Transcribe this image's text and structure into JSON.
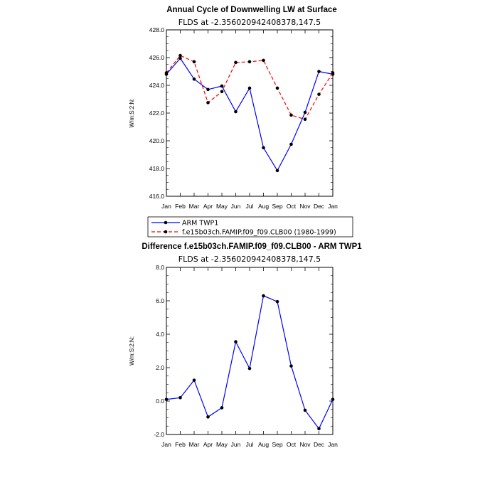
{
  "chart_data": [
    {
      "type": "line",
      "title": "Annual Cycle of Downwelling LW at Surface",
      "subtitle": "FLDS at -2.356020942408378,147.5",
      "ylabel": "W/m:S:2:N:",
      "ylim": [
        416.0,
        428.0
      ],
      "yticks": [
        "416.0",
        "418.0",
        "420.0",
        "422.0",
        "424.0",
        "426.0",
        "428.0"
      ],
      "categories": [
        "Jan",
        "Feb",
        "Mar",
        "Apr",
        "May",
        "Jun",
        "Jul",
        "Aug",
        "Sep",
        "Oct",
        "Nov",
        "Dec",
        "Jan"
      ],
      "series": [
        {
          "name": "ARM TWP1",
          "color": "#0000ff",
          "dash": "solid",
          "values": [
            424.8,
            425.95,
            424.45,
            423.7,
            423.95,
            422.1,
            423.8,
            419.5,
            417.85,
            419.75,
            422.05,
            425.0,
            424.8
          ]
        },
        {
          "name": "f.e15b03ch.FAMIP.f09_f09.CLB00 (1980-1999)",
          "color": "#ff0000",
          "dash": "dashed",
          "values": [
            424.9,
            426.15,
            425.7,
            422.75,
            423.55,
            425.65,
            425.7,
            425.8,
            423.8,
            421.85,
            421.55,
            423.35,
            424.9
          ]
        }
      ],
      "legend": "below"
    },
    {
      "type": "line",
      "title": "Difference f.e15b03ch.FAMIP.f09_f09.CLB00 - ARM TWP1",
      "subtitle": "FLDS at -2.356020942408378,147.5",
      "ylabel": "W/m:S:2:N:",
      "ylim": [
        -2.0,
        8.0
      ],
      "yticks": [
        "-2.0",
        "0.0",
        "2.0",
        "4.0",
        "6.0",
        "8.0"
      ],
      "categories": [
        "Jan",
        "Feb",
        "Mar",
        "Apr",
        "May",
        "Jun",
        "Jul",
        "Aug",
        "Sep",
        "Oct",
        "Nov",
        "Dec",
        "Jan"
      ],
      "series": [
        {
          "color": "#0000ff",
          "dash": "solid",
          "values": [
            0.1,
            0.2,
            1.25,
            -0.95,
            -0.4,
            3.55,
            1.95,
            6.3,
            5.95,
            2.1,
            -0.55,
            -1.65,
            0.1
          ]
        }
      ]
    }
  ]
}
